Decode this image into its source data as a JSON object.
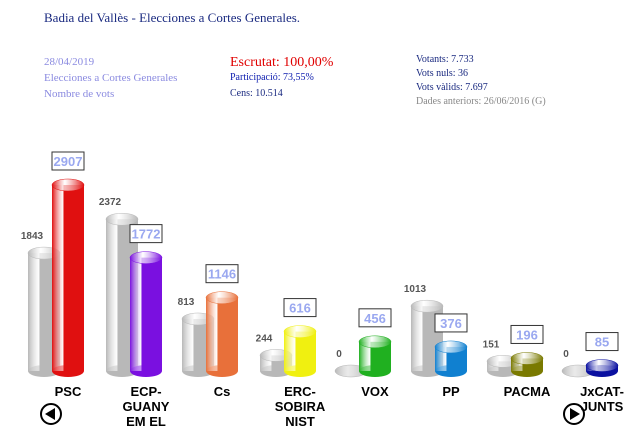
{
  "header": {
    "title": "Badia del Vallès - Elecciones a Cortes Generales.",
    "date": "28/04/2019",
    "election": "Elecciones a Cortes Generales",
    "measure": "Nombre de vots",
    "scrutiny": "Escrutat: 100,00%",
    "participation": "Participació: 73,55%",
    "census": "Cens: 10.514",
    "voters": "Votants: 7.733",
    "null_votes": "Vots nuls: 36",
    "valid_votes": "Vots vàlids: 7.697",
    "previous": "Dades anteriors: 26/06/2016 (G)"
  },
  "chart_data": {
    "type": "bar",
    "categories": [
      "PSC",
      "ECP-GUANY EM EL",
      "Cs",
      "ERC-SOBIRANIST",
      "VOX",
      "PP",
      "PACMA",
      "JxCAT-JUNTS"
    ],
    "series": [
      {
        "color": "#b8b8b8",
        "values": [
          1843,
          2372,
          813,
          244,
          0,
          1013,
          151,
          0
        ]
      },
      {
        "colors": [
          "#e01010",
          "#7a10e0",
          "#e8703a",
          "#f0f010",
          "#20b020",
          "#1080d0",
          "#7a7a00",
          "#0a10a0"
        ],
        "values": [
          2907,
          1772,
          1146,
          616,
          456,
          376,
          196,
          85
        ]
      }
    ]
  }
}
